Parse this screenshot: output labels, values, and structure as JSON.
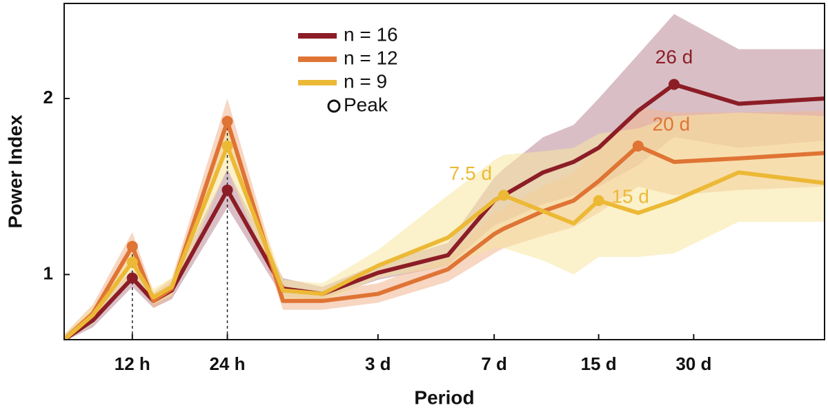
{
  "chart_data": {
    "type": "line",
    "x_label": "Period",
    "y_label": "Power Index",
    "xscale": "log",
    "x": [
      7.3,
      9,
      12,
      14,
      16,
      24,
      36,
      48,
      72,
      120,
      168,
      180,
      240,
      300,
      360,
      480,
      624,
      1000,
      1870
    ],
    "xlim": [
      7.3,
      1870
    ],
    "xticks": [
      {
        "value": 12,
        "label": "12 h"
      },
      {
        "value": 24,
        "label": "24 h"
      },
      {
        "value": 72,
        "label": "3 d"
      },
      {
        "value": 168,
        "label": "7 d"
      },
      {
        "value": 360,
        "label": "15 d"
      },
      {
        "value": 720,
        "label": "30 d"
      }
    ],
    "ylim": [
      0.63,
      2.54
    ],
    "yticks": [
      1,
      2
    ],
    "legend": "upper-left",
    "peak_legend": "Peak",
    "reference_lines_x": [
      12,
      24
    ],
    "series": [
      {
        "name": "n = 16",
        "color": "#8c1d26",
        "band_color": "#b98a96",
        "values": [
          0.63,
          0.74,
          0.98,
          0.85,
          0.91,
          1.48,
          0.92,
          0.89,
          1.01,
          1.11,
          1.42,
          1.45,
          1.58,
          1.64,
          1.72,
          1.93,
          2.08,
          1.97,
          2.0
        ],
        "lower": [
          0.62,
          0.7,
          0.93,
          0.81,
          0.86,
          1.38,
          0.87,
          0.86,
          0.97,
          1.05,
          1.28,
          1.3,
          1.4,
          1.45,
          1.5,
          1.62,
          1.78,
          1.72,
          1.76
        ],
        "upper": [
          0.66,
          0.79,
          1.03,
          0.89,
          0.96,
          1.6,
          0.98,
          0.93,
          1.06,
          1.18,
          1.55,
          1.6,
          1.78,
          1.85,
          2.0,
          2.25,
          2.48,
          2.28,
          2.28
        ],
        "peaks": [
          {
            "x": 12,
            "y": 0.98
          },
          {
            "x": 24,
            "y": 1.48
          },
          {
            "x": 624,
            "y": 2.08,
            "label": "26 d"
          }
        ]
      },
      {
        "name": "n = 12",
        "color": "#df7434",
        "band_color": "#f0b48f",
        "values": [
          0.63,
          0.78,
          1.16,
          0.85,
          0.92,
          1.87,
          0.85,
          0.85,
          0.89,
          1.03,
          1.23,
          1.26,
          1.36,
          1.42,
          1.53,
          1.73,
          1.64,
          1.66,
          1.69
        ],
        "lower": [
          0.62,
          0.73,
          1.1,
          0.81,
          0.87,
          1.76,
          0.8,
          0.8,
          0.84,
          0.96,
          1.12,
          1.15,
          1.22,
          1.27,
          1.35,
          1.5,
          1.45,
          1.48,
          1.5
        ],
        "upper": [
          0.66,
          0.83,
          1.24,
          0.9,
          0.98,
          2.0,
          0.91,
          0.9,
          0.95,
          1.1,
          1.35,
          1.38,
          1.5,
          1.58,
          1.72,
          1.95,
          1.92,
          1.92,
          1.93
        ],
        "peaks": [
          {
            "x": 12,
            "y": 1.16
          },
          {
            "x": 24,
            "y": 1.87
          },
          {
            "x": 480,
            "y": 1.73,
            "label": "20 d"
          }
        ]
      },
      {
        "name": "n = 9",
        "color": "#ecb936",
        "band_color": "#f7e6a0",
        "values": [
          0.63,
          0.77,
          1.07,
          0.87,
          0.93,
          1.73,
          0.91,
          0.89,
          1.05,
          1.21,
          1.42,
          1.45,
          1.36,
          1.29,
          1.42,
          1.35,
          1.42,
          1.58,
          1.52
        ],
        "lower": [
          0.62,
          0.72,
          1.0,
          0.83,
          0.88,
          1.6,
          0.85,
          0.84,
          0.98,
          1.05,
          1.15,
          1.15,
          1.08,
          1.0,
          1.1,
          1.1,
          1.12,
          1.3,
          1.3
        ],
        "upper": [
          0.66,
          0.82,
          1.14,
          0.92,
          0.98,
          1.86,
          0.97,
          0.95,
          1.14,
          1.45,
          1.65,
          1.68,
          1.7,
          1.72,
          1.8,
          1.83,
          1.9,
          1.92,
          1.9
        ],
        "peaks": [
          {
            "x": 12,
            "y": 1.07
          },
          {
            "x": 24,
            "y": 1.73
          },
          {
            "x": 180,
            "y": 1.45,
            "label": "7.5 d"
          },
          {
            "x": 360,
            "y": 1.42,
            "label": "15 d"
          }
        ]
      }
    ]
  }
}
